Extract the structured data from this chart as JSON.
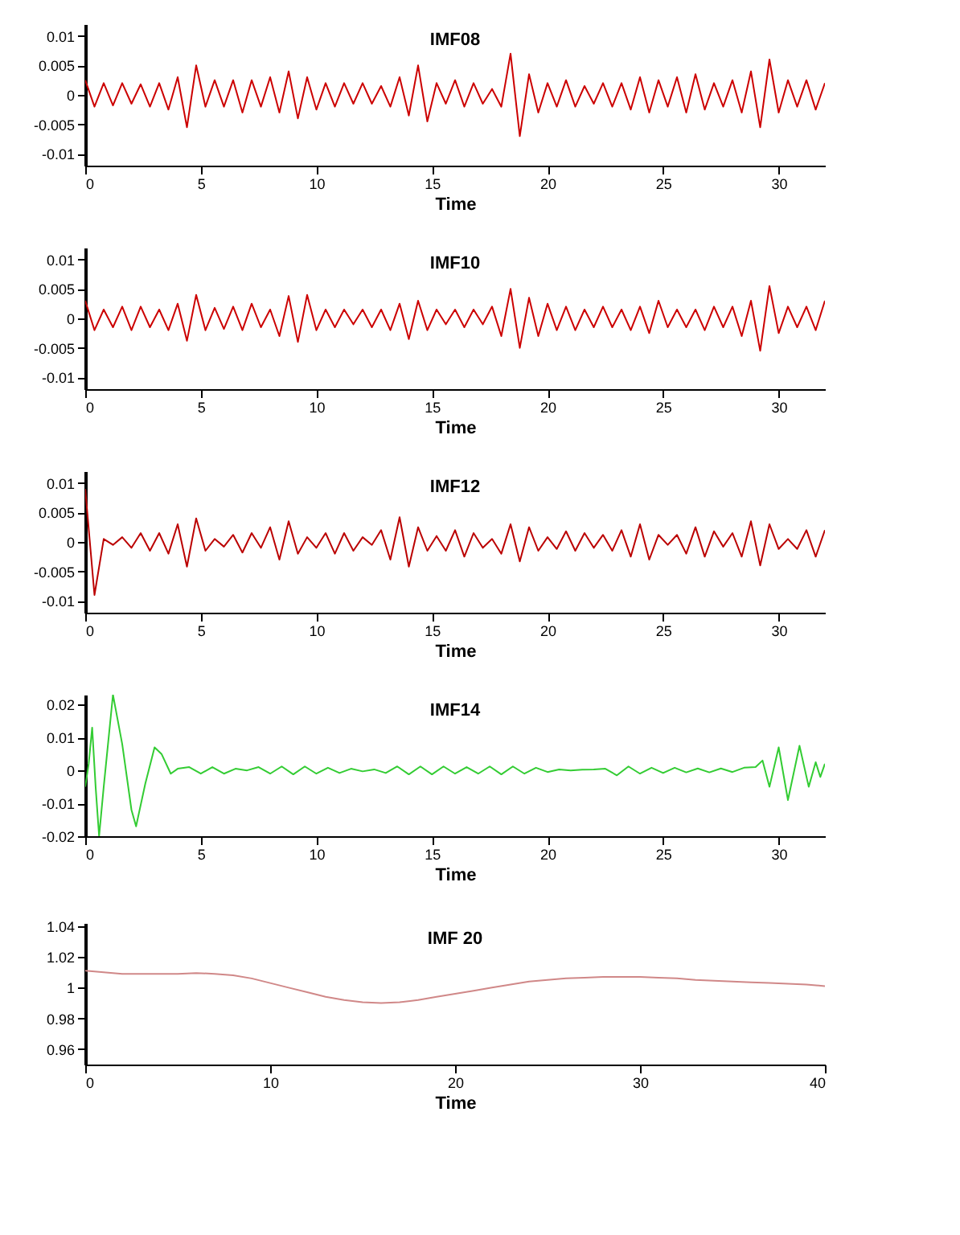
{
  "chart_data": [
    {
      "type": "line",
      "title": "IMF08",
      "xlabel": "Time",
      "xlim": [
        0,
        32
      ],
      "xticks": [
        0,
        5,
        10,
        15,
        20,
        25,
        30
      ],
      "ylim": [
        -0.012,
        0.012
      ],
      "yticks": [
        -0.01,
        -0.005,
        0,
        0.005,
        0.01
      ],
      "x": [
        0,
        0.4,
        0.8,
        1.2,
        1.6,
        2,
        2.4,
        2.8,
        3.2,
        3.6,
        4,
        4.4,
        4.8,
        5.2,
        5.6,
        6,
        6.4,
        6.8,
        7.2,
        7.6,
        8,
        8.4,
        8.8,
        9.2,
        9.6,
        10,
        10.4,
        10.8,
        11.2,
        11.6,
        12,
        12.4,
        12.8,
        13.2,
        13.6,
        14,
        14.4,
        14.8,
        15.2,
        15.6,
        16,
        16.4,
        16.8,
        17.2,
        17.6,
        18,
        18.4,
        18.8,
        19.2,
        19.6,
        20,
        20.4,
        20.8,
        21.2,
        21.6,
        22,
        22.4,
        22.8,
        23.2,
        23.6,
        24,
        24.4,
        24.8,
        25.2,
        25.6,
        26,
        26.4,
        26.8,
        27.2,
        27.6,
        28,
        28.4,
        28.8,
        29.2,
        29.6,
        30,
        30.4,
        30.8,
        31.2,
        31.6,
        32
      ],
      "series": [
        {
          "color": "#cc0000",
          "values": [
            0.0025,
            -0.002,
            0.002,
            -0.0018,
            0.002,
            -0.0015,
            0.0018,
            -0.002,
            0.002,
            -0.0025,
            0.003,
            -0.0055,
            0.005,
            -0.002,
            0.0025,
            -0.002,
            0.0025,
            -0.003,
            0.0025,
            -0.002,
            0.003,
            -0.003,
            0.004,
            -0.004,
            0.003,
            -0.0025,
            0.002,
            -0.002,
            0.002,
            -0.0015,
            0.002,
            -0.0015,
            0.0015,
            -0.002,
            0.003,
            -0.0035,
            0.005,
            -0.0045,
            0.002,
            -0.0015,
            0.0025,
            -0.002,
            0.002,
            -0.0015,
            0.001,
            -0.002,
            0.007,
            -0.007,
            0.0035,
            -0.003,
            0.002,
            -0.002,
            0.0025,
            -0.002,
            0.0015,
            -0.0015,
            0.002,
            -0.002,
            0.002,
            -0.0025,
            0.003,
            -0.003,
            0.0025,
            -0.002,
            0.003,
            -0.003,
            0.0035,
            -0.0025,
            0.002,
            -0.002,
            0.0025,
            -0.003,
            0.004,
            -0.0055,
            0.006,
            -0.003,
            0.0025,
            -0.002,
            0.0025,
            -0.0025,
            0.002
          ]
        }
      ]
    },
    {
      "type": "line",
      "title": "IMF10",
      "xlabel": "Time",
      "xlim": [
        0,
        32
      ],
      "xticks": [
        0,
        5,
        10,
        15,
        20,
        25,
        30
      ],
      "ylim": [
        -0.012,
        0.012
      ],
      "yticks": [
        -0.01,
        -0.005,
        0,
        0.005,
        0.01
      ],
      "x": [
        0,
        0.4,
        0.8,
        1.2,
        1.6,
        2,
        2.4,
        2.8,
        3.2,
        3.6,
        4,
        4.4,
        4.8,
        5.2,
        5.6,
        6,
        6.4,
        6.8,
        7.2,
        7.6,
        8,
        8.4,
        8.8,
        9.2,
        9.6,
        10,
        10.4,
        10.8,
        11.2,
        11.6,
        12,
        12.4,
        12.8,
        13.2,
        13.6,
        14,
        14.4,
        14.8,
        15.2,
        15.6,
        16,
        16.4,
        16.8,
        17.2,
        17.6,
        18,
        18.4,
        18.8,
        19.2,
        19.6,
        20,
        20.4,
        20.8,
        21.2,
        21.6,
        22,
        22.4,
        22.8,
        23.2,
        23.6,
        24,
        24.4,
        24.8,
        25.2,
        25.6,
        26,
        26.4,
        26.8,
        27.2,
        27.6,
        28,
        28.4,
        28.8,
        29.2,
        29.6,
        30,
        30.4,
        30.8,
        31.2,
        31.6,
        32
      ],
      "series": [
        {
          "color": "#cc0000",
          "values": [
            0.003,
            -0.002,
            0.0015,
            -0.0015,
            0.002,
            -0.002,
            0.002,
            -0.0015,
            0.0015,
            -0.002,
            0.0025,
            -0.0038,
            0.004,
            -0.002,
            0.0018,
            -0.0018,
            0.002,
            -0.002,
            0.0025,
            -0.0015,
            0.0015,
            -0.003,
            0.0038,
            -0.004,
            0.004,
            -0.002,
            0.0015,
            -0.0015,
            0.0015,
            -0.001,
            0.0015,
            -0.0015,
            0.0015,
            -0.002,
            0.0025,
            -0.0035,
            0.003,
            -0.002,
            0.0015,
            -0.001,
            0.0015,
            -0.0015,
            0.0015,
            -0.001,
            0.002,
            -0.003,
            0.005,
            -0.005,
            0.0035,
            -0.003,
            0.0025,
            -0.002,
            0.002,
            -0.002,
            0.0015,
            -0.0015,
            0.002,
            -0.0015,
            0.0015,
            -0.002,
            0.002,
            -0.0025,
            0.003,
            -0.0015,
            0.0015,
            -0.0015,
            0.0015,
            -0.002,
            0.002,
            -0.0015,
            0.002,
            -0.003,
            0.003,
            -0.0055,
            0.0055,
            -0.0025,
            0.002,
            -0.0015,
            0.002,
            -0.002,
            0.003
          ]
        }
      ]
    },
    {
      "type": "line",
      "title": "IMF12",
      "xlabel": "Time",
      "xlim": [
        0,
        32
      ],
      "xticks": [
        0,
        5,
        10,
        15,
        20,
        25,
        30
      ],
      "ylim": [
        -0.012,
        0.012
      ],
      "yticks": [
        -0.01,
        -0.005,
        0,
        0.005,
        0.01
      ],
      "x": [
        0,
        0.4,
        0.8,
        1.2,
        1.6,
        2,
        2.4,
        2.8,
        3.2,
        3.6,
        4,
        4.4,
        4.8,
        5.2,
        5.6,
        6,
        6.4,
        6.8,
        7.2,
        7.6,
        8,
        8.4,
        8.8,
        9.2,
        9.6,
        10,
        10.4,
        10.8,
        11.2,
        11.6,
        12,
        12.4,
        12.8,
        13.2,
        13.6,
        14,
        14.4,
        14.8,
        15.2,
        15.6,
        16,
        16.4,
        16.8,
        17.2,
        17.6,
        18,
        18.4,
        18.8,
        19.2,
        19.6,
        20,
        20.4,
        20.8,
        21.2,
        21.6,
        22,
        22.4,
        22.8,
        23.2,
        23.6,
        24,
        24.4,
        24.8,
        25.2,
        25.6,
        26,
        26.4,
        26.8,
        27.2,
        27.6,
        28,
        28.4,
        28.8,
        29.2,
        29.6,
        30,
        30.4,
        30.8,
        31.2,
        31.6,
        32
      ],
      "series": [
        {
          "color": "#bb0000",
          "values": [
            0.009,
            -0.009,
            0.0005,
            -0.0005,
            0.0008,
            -0.001,
            0.0015,
            -0.0015,
            0.0015,
            -0.002,
            0.003,
            -0.0042,
            0.004,
            -0.0015,
            0.0005,
            -0.0008,
            0.0012,
            -0.0018,
            0.0015,
            -0.001,
            0.0025,
            -0.003,
            0.0035,
            -0.002,
            0.0008,
            -0.001,
            0.0015,
            -0.002,
            0.0015,
            -0.0015,
            0.0008,
            -0.0005,
            0.002,
            -0.003,
            0.0042,
            -0.0042,
            0.0025,
            -0.0015,
            0.001,
            -0.0015,
            0.002,
            -0.0025,
            0.0015,
            -0.001,
            0.0005,
            -0.002,
            0.003,
            -0.0033,
            0.0025,
            -0.0015,
            0.0008,
            -0.0012,
            0.0018,
            -0.0015,
            0.0015,
            -0.001,
            0.0012,
            -0.0015,
            0.002,
            -0.0025,
            0.003,
            -0.003,
            0.0012,
            -0.0005,
            0.0012,
            -0.002,
            0.0025,
            -0.0025,
            0.0018,
            -0.0008,
            0.0015,
            -0.0025,
            0.0035,
            -0.004,
            0.003,
            -0.0012,
            0.0005,
            -0.0012,
            0.002,
            -0.0025,
            0.002
          ]
        }
      ]
    },
    {
      "type": "line",
      "title": "IMF14",
      "xlabel": "Time",
      "xlim": [
        0,
        32
      ],
      "xticks": [
        0,
        5,
        10,
        15,
        20,
        25,
        30
      ],
      "ylim": [
        -0.02,
        0.023
      ],
      "yticks": [
        -0.02,
        -0.01,
        0,
        0.01,
        0.02
      ],
      "x": [
        0,
        0.15,
        0.3,
        0.45,
        0.6,
        0.8,
        1.2,
        1.6,
        2,
        2.2,
        2.6,
        3,
        3.3,
        3.7,
        4,
        4.5,
        5,
        5.5,
        6,
        6.5,
        7,
        7.5,
        8,
        8.5,
        9,
        9.5,
        10,
        10.5,
        11,
        11.5,
        12,
        12.5,
        13,
        13.5,
        14,
        14.5,
        15,
        15.5,
        16,
        16.5,
        17,
        17.5,
        18,
        18.5,
        19,
        19.5,
        20,
        20.5,
        21,
        21.5,
        22,
        22.5,
        23,
        23.5,
        24,
        24.5,
        25,
        25.5,
        26,
        26.5,
        27,
        27.5,
        28,
        28.5,
        29,
        29.3,
        29.6,
        30,
        30.4,
        30.9,
        31.3,
        31.6,
        31.8,
        32
      ],
      "series": [
        {
          "color": "#33cc33",
          "values": [
            -0.005,
            0.002,
            0.013,
            -0.005,
            -0.02,
            -0.005,
            0.023,
            0.008,
            -0.012,
            -0.017,
            -0.004,
            0.007,
            0.005,
            -0.001,
            0.0005,
            0.001,
            -0.001,
            0.001,
            -0.001,
            0.0005,
            0,
            0.001,
            -0.001,
            0.0012,
            -0.0012,
            0.0012,
            -0.001,
            0.0008,
            -0.0008,
            0.0005,
            -0.0003,
            0.0003,
            -0.0008,
            0.0012,
            -0.0012,
            0.0012,
            -0.0012,
            0.0012,
            -0.001,
            0.001,
            -0.001,
            0.0012,
            -0.0012,
            0.0012,
            -0.001,
            0.0008,
            -0.0005,
            0.0003,
            0,
            0.0002,
            0.0003,
            0.0005,
            -0.0015,
            0.0012,
            -0.001,
            0.0008,
            -0.0008,
            0.0008,
            -0.0006,
            0.0006,
            -0.0006,
            0.0006,
            -0.0005,
            0.0008,
            0.001,
            0.003,
            -0.005,
            0.007,
            -0.009,
            0.0075,
            -0.005,
            0.0025,
            -0.002,
            0.002
          ]
        }
      ]
    },
    {
      "type": "line",
      "title": "IMF  20",
      "xlabel": "Time",
      "xlim": [
        0,
        40
      ],
      "xticks": [
        0,
        10,
        20,
        30,
        40
      ],
      "ylim": [
        0.95,
        1.042
      ],
      "yticks": [
        0.96,
        0.98,
        1,
        1.02,
        1.04
      ],
      "x": [
        0,
        1,
        2,
        3,
        4,
        5,
        6,
        7,
        8,
        9,
        10,
        11,
        12,
        13,
        14,
        15,
        16,
        17,
        18,
        19,
        20,
        21,
        22,
        23,
        24,
        25,
        26,
        27,
        28,
        29,
        30,
        31,
        32,
        33,
        34,
        35,
        36,
        37,
        38,
        39,
        40
      ],
      "series": [
        {
          "color": "#d08888",
          "values": [
            1.011,
            1.01,
            1.009,
            1.009,
            1.009,
            1.009,
            1.0095,
            1.009,
            1.008,
            1.006,
            1.003,
            1,
            0.997,
            0.994,
            0.992,
            0.9905,
            0.99,
            0.9905,
            0.992,
            0.994,
            0.996,
            0.998,
            1,
            1.002,
            1.004,
            1.005,
            1.006,
            1.0065,
            1.007,
            1.007,
            1.007,
            1.0065,
            1.006,
            1.005,
            1.0045,
            1.004,
            1.0035,
            1.003,
            1.0025,
            1.002,
            1.001
          ]
        }
      ]
    }
  ]
}
